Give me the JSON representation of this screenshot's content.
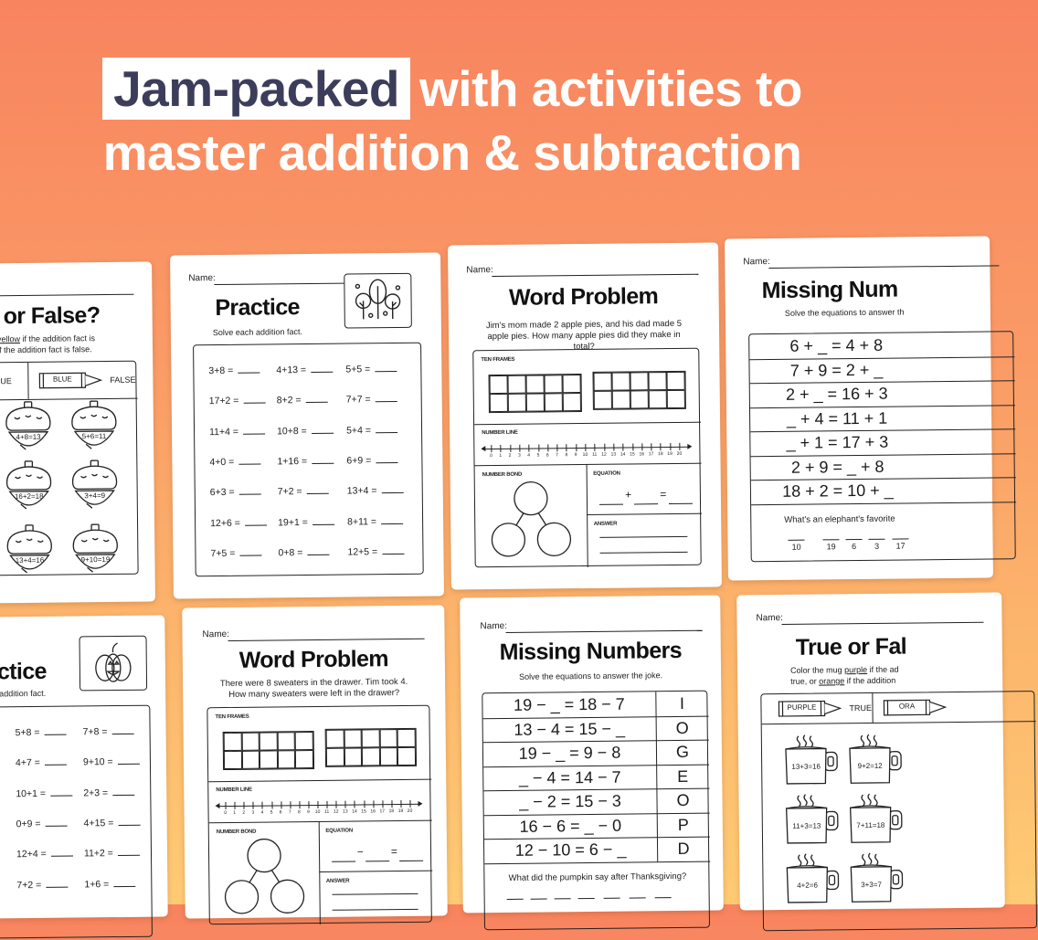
{
  "headline": {
    "highlight": "Jam-packed",
    "line1_rest": "with activities to",
    "line2": "master addition & subtraction"
  },
  "colors": {
    "background_top": "#f8845f",
    "background_bottom": "#fecb74",
    "highlight_text": "#3c3d5a",
    "headline_text": "#ffffff",
    "worksheet": "#ffffff",
    "ink": "#1d1d1d"
  },
  "common": {
    "name_label": "Name:",
    "ten_frames": "TEN FRAMES",
    "number_line": "NUMBER LINE",
    "number_bond": "NUMBER BOND",
    "equation": "EQUATION",
    "answer": "ANSWER",
    "number_line_ticks": [
      "0",
      "1",
      "2",
      "3",
      "4",
      "5",
      "6",
      "7",
      "8",
      "9",
      "10",
      "11",
      "12",
      "13",
      "14",
      "15",
      "16",
      "17",
      "18",
      "19",
      "20"
    ]
  },
  "worksheets": [
    {
      "type": "true-or-false",
      "title": "or False?",
      "instructions": [
        {
          "before": "",
          "underlined": "yellow",
          "after": " if the addition fact is"
        },
        {
          "before": "if the addition fact is false.",
          "underlined": "",
          "after": ""
        }
      ],
      "key": [
        {
          "crayon": "",
          "result": "UE"
        },
        {
          "crayon": "BLUE",
          "result": "FALSE"
        }
      ],
      "icon": "acorn-icon",
      "items": [
        "4+8=13",
        "5+6=11",
        "16+2=18",
        "3+4=9",
        "13+4=16",
        "9+10=19"
      ]
    },
    {
      "type": "practice",
      "title": "Practice",
      "subtitle": "Solve each addition fact.",
      "icon": "trees-icon",
      "problems": [
        [
          "3+8 =",
          "4+13 =",
          "5+5 ="
        ],
        [
          "17+2 =",
          "8+2 =",
          "7+7 ="
        ],
        [
          "11+4 =",
          "10+8 =",
          "5+4 ="
        ],
        [
          "4+0 =",
          "1+16 =",
          "6+9 ="
        ],
        [
          "6+3 =",
          "7+2 =",
          "13+4 ="
        ],
        [
          "12+6 =",
          "19+1 =",
          "8+11 ="
        ],
        [
          "7+5 =",
          "0+8 =",
          "12+5 ="
        ]
      ]
    },
    {
      "type": "word-problem",
      "title": "Word Problem",
      "problem": "Jim's mom made 2 apple pies, and his dad made 5 apple pies. How many apple pies did they make in total?",
      "operator": "+"
    },
    {
      "type": "missing-numbers",
      "title": "Missing Num",
      "subtitle": "Solve the equations to answer th",
      "equations": [
        "6 + _ = 4 + 8",
        "7 + 9 = 2 + _",
        "2 + _ = 16 + 3",
        "_ + 4 = 11 + 1",
        "_ + 1 = 17 + 3",
        "2 + 9 = _ + 8",
        "18 + 2 = 10 + _"
      ],
      "letters": [],
      "joke": "What's an elephant's favorite",
      "answer_numbers": [
        "10",
        "19",
        "6",
        "3",
        "17"
      ]
    },
    {
      "type": "practice",
      "title": "ctice",
      "subtitle": "addition fact.",
      "icon": "pumpkin-icon",
      "problems": [
        [
          "5+8 =",
          "7+8 ="
        ],
        [
          "4+7 =",
          "9+10 ="
        ],
        [
          "10+1 =",
          "2+3 ="
        ],
        [
          "0+9 =",
          "4+15 ="
        ],
        [
          "12+4 =",
          "11+2 ="
        ],
        [
          "7+2 =",
          "1+6 ="
        ]
      ]
    },
    {
      "type": "word-problem",
      "title": "Word Problem",
      "problem": "There were 8 sweaters in the drawer. Tim took 4. How many sweaters were left in the drawer?",
      "operator": "−"
    },
    {
      "type": "missing-numbers",
      "title": "Missing Numbers",
      "subtitle": "Solve the equations to answer the joke.",
      "equations": [
        "19 − _ = 18 − 7",
        "13 − 4 = 15 − _",
        "19 − _ = 9 − 8",
        "_ − 4 = 14 − 7",
        "_ − 2 = 15 − 3",
        "16 − 6 = _ − 0",
        "12 − 10 = 6 − _"
      ],
      "letters": [
        "I",
        "O",
        "G",
        "E",
        "O",
        "P",
        "D"
      ],
      "joke": "What did the pumpkin say after Thanksgiving?",
      "answer_numbers": []
    },
    {
      "type": "true-or-false",
      "title": "True or Fal",
      "instructions": [
        {
          "before": "Color the mug ",
          "underlined": "purple",
          "after": " if the ad"
        },
        {
          "before": "true, or ",
          "underlined": "orange",
          "after": " if the addition"
        }
      ],
      "key": [
        {
          "crayon": "PURPLE",
          "result": "TRUE"
        },
        {
          "crayon": "ORA",
          "result": ""
        }
      ],
      "icon": "mug-icon",
      "items": [
        "13+3=16",
        "9+2=12",
        "11+3=13",
        "7+11=18",
        "4+2=6",
        "3+3=7"
      ]
    }
  ]
}
